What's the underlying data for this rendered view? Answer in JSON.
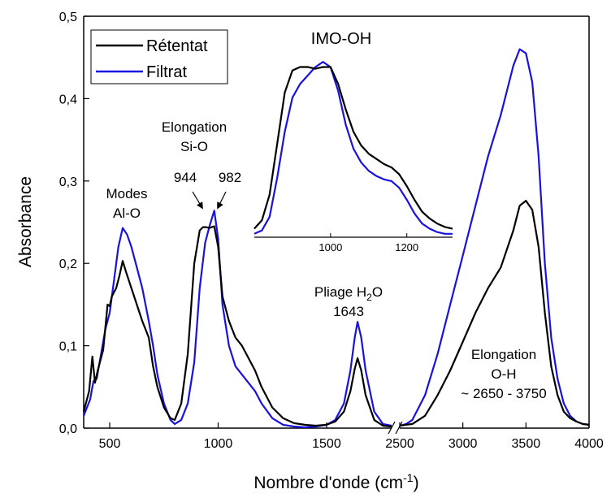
{
  "chart_data": [
    {
      "type": "line",
      "title": "",
      "xlabel": "Nombre d'onde (cm",
      "xlabel_sup": "-1",
      "xlabel_close": ")",
      "ylabel": "Absorbance",
      "x_break": "split axis between 1800 and 2500",
      "x_segments": [
        [
          380,
          1800
        ],
        [
          2500,
          4000
        ]
      ],
      "ylim": [
        0,
        0.5
      ],
      "x_ticks_left": [
        500,
        1000,
        1500
      ],
      "x_ticks_right": [
        2500,
        3000,
        3500,
        4000
      ],
      "x_tick_labels_left": [
        "500",
        "1000",
        "1500"
      ],
      "x_tick_labels_right": [
        "2500",
        "3000",
        "3500",
        "4000"
      ],
      "y_ticks": [
        0,
        0.1,
        0.2,
        0.3,
        0.4,
        0.5
      ],
      "y_tick_labels": [
        "0,0",
        "0,1",
        "0,2",
        "0,3",
        "0,4",
        "0,5"
      ],
      "legend_position": "top-left",
      "colors": {
        "retentat": "#000000",
        "filtrat": "#1a10e0"
      },
      "series": [
        {
          "name": "Rétentat",
          "x": [
            380,
            405,
            420,
            432,
            445,
            470,
            490,
            500,
            510,
            530,
            545,
            560,
            575,
            600,
            625,
            650,
            680,
            700,
            720,
            750,
            780,
            800,
            830,
            860,
            890,
            915,
            930,
            944,
            960,
            982,
            1000,
            1020,
            1050,
            1080,
            1110,
            1140,
            1170,
            1200,
            1250,
            1300,
            1350,
            1400,
            1450,
            1500,
            1540,
            1580,
            1610,
            1630,
            1643,
            1660,
            1680,
            1720,
            1760,
            1800,
            2500,
            2550,
            2600,
            2700,
            2800,
            2900,
            3000,
            3100,
            3200,
            3300,
            3400,
            3450,
            3500,
            3550,
            3600,
            3650,
            3700,
            3750,
            3800,
            3850,
            3900,
            3950,
            4000
          ],
          "y": [
            0.02,
            0.045,
            0.087,
            0.055,
            0.07,
            0.095,
            0.15,
            0.148,
            0.16,
            0.17,
            0.185,
            0.203,
            0.19,
            0.17,
            0.15,
            0.13,
            0.11,
            0.075,
            0.05,
            0.025,
            0.012,
            0.01,
            0.03,
            0.09,
            0.2,
            0.24,
            0.244,
            0.244,
            0.243,
            0.245,
            0.22,
            0.16,
            0.13,
            0.11,
            0.1,
            0.085,
            0.07,
            0.05,
            0.025,
            0.012,
            0.006,
            0.004,
            0.003,
            0.004,
            0.008,
            0.02,
            0.045,
            0.072,
            0.085,
            0.07,
            0.04,
            0.01,
            0.003,
            0.002,
            0.003,
            0.004,
            0.005,
            0.015,
            0.04,
            0.07,
            0.105,
            0.14,
            0.17,
            0.195,
            0.24,
            0.27,
            0.276,
            0.265,
            0.22,
            0.14,
            0.075,
            0.04,
            0.02,
            0.012,
            0.008,
            0.005,
            0.004
          ]
        },
        {
          "name": "Filtrat",
          "x": [
            380,
            410,
            425,
            440,
            460,
            480,
            500,
            520,
            540,
            560,
            580,
            600,
            620,
            650,
            680,
            700,
            720,
            750,
            780,
            800,
            830,
            860,
            890,
            915,
            940,
            960,
            982,
            1000,
            1020,
            1050,
            1080,
            1110,
            1140,
            1170,
            1200,
            1250,
            1300,
            1350,
            1400,
            1450,
            1500,
            1540,
            1580,
            1610,
            1630,
            1643,
            1660,
            1680,
            1720,
            1760,
            1800,
            2500,
            2550,
            2600,
            2700,
            2800,
            2900,
            3000,
            3100,
            3200,
            3300,
            3400,
            3450,
            3500,
            3550,
            3600,
            3650,
            3700,
            3750,
            3800,
            3850,
            3900,
            3950,
            4000
          ],
          "y": [
            0.015,
            0.035,
            0.057,
            0.06,
            0.09,
            0.12,
            0.14,
            0.18,
            0.22,
            0.243,
            0.235,
            0.22,
            0.2,
            0.17,
            0.13,
            0.1,
            0.065,
            0.03,
            0.01,
            0.005,
            0.01,
            0.03,
            0.08,
            0.17,
            0.225,
            0.245,
            0.264,
            0.23,
            0.15,
            0.1,
            0.075,
            0.065,
            0.055,
            0.045,
            0.03,
            0.012,
            0.004,
            0.002,
            0.001,
            0.002,
            0.004,
            0.01,
            0.03,
            0.07,
            0.11,
            0.129,
            0.11,
            0.07,
            0.02,
            0.005,
            0.003,
            0.003,
            0.005,
            0.01,
            0.04,
            0.09,
            0.15,
            0.21,
            0.27,
            0.33,
            0.38,
            0.44,
            0.46,
            0.455,
            0.42,
            0.33,
            0.2,
            0.11,
            0.06,
            0.03,
            0.015,
            0.008,
            0.005,
            0.004
          ]
        }
      ],
      "annotations": [
        {
          "lines": [
            "Modes",
            "Al-O"
          ]
        },
        {
          "lines": [
            "Elongation",
            "Si-O"
          ]
        },
        {
          "lines": [
            "944"
          ]
        },
        {
          "lines": [
            "982"
          ]
        },
        {
          "lines": [
            "Pliage H",
            "1643"
          ],
          "sub": "2",
          "tail": "O"
        },
        {
          "lines": [
            "Elongation",
            "O-H",
            "~ 2650 - 3750"
          ]
        }
      ]
    },
    {
      "type": "line",
      "title": "IMO-OH",
      "xlim": [
        800,
        1320
      ],
      "ylim": [
        0,
        1.05
      ],
      "x_ticks": [
        1000,
        1200
      ],
      "x_tick_labels": [
        "1000",
        "1200"
      ],
      "series": [
        {
          "name": "Rétentat",
          "x": [
            800,
            820,
            840,
            860,
            880,
            900,
            920,
            940,
            960,
            980,
            1000,
            1020,
            1040,
            1060,
            1080,
            1100,
            1120,
            1140,
            1160,
            1180,
            1200,
            1220,
            1240,
            1260,
            1280,
            1300,
            1320
          ],
          "y": [
            0.05,
            0.1,
            0.25,
            0.55,
            0.85,
            0.98,
            1.0,
            1.0,
            0.99,
            1.0,
            1.0,
            0.9,
            0.75,
            0.62,
            0.54,
            0.49,
            0.46,
            0.43,
            0.41,
            0.37,
            0.3,
            0.22,
            0.15,
            0.11,
            0.08,
            0.06,
            0.05
          ]
        },
        {
          "name": "Filtrat",
          "x": [
            800,
            820,
            840,
            860,
            880,
            900,
            920,
            940,
            960,
            980,
            1000,
            1020,
            1040,
            1060,
            1080,
            1100,
            1120,
            1140,
            1160,
            1180,
            1200,
            1220,
            1240,
            1260,
            1280,
            1300,
            1320
          ],
          "y": [
            0.02,
            0.04,
            0.12,
            0.35,
            0.62,
            0.82,
            0.9,
            0.95,
            1.0,
            1.03,
            1.0,
            0.86,
            0.66,
            0.52,
            0.44,
            0.39,
            0.36,
            0.34,
            0.33,
            0.29,
            0.22,
            0.14,
            0.08,
            0.05,
            0.03,
            0.02,
            0.02
          ]
        }
      ]
    }
  ]
}
